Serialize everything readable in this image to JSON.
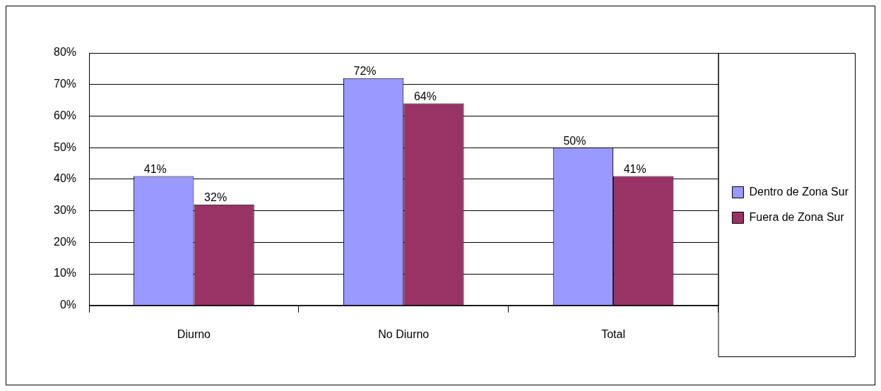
{
  "chart_data": {
    "type": "bar",
    "categories": [
      "Diurno",
      "No Diurno",
      "Total"
    ],
    "series": [
      {
        "name": "Dentro de Zona Sur",
        "color": "#9999ff",
        "values": [
          41,
          72,
          50
        ],
        "value_labels": [
          "41%",
          "72%",
          "50%"
        ]
      },
      {
        "name": "Fuera de Zona Sur",
        "color": "#993366",
        "values": [
          32,
          64,
          41
        ],
        "value_labels": [
          "32%",
          "64%",
          "41%"
        ]
      }
    ],
    "ylim": [
      0,
      80
    ],
    "yticks": [
      {
        "value": 0,
        "label": "0%"
      },
      {
        "value": 10,
        "label": "10%"
      },
      {
        "value": 20,
        "label": "20%"
      },
      {
        "value": 30,
        "label": "30%"
      },
      {
        "value": 40,
        "label": "40%"
      },
      {
        "value": 50,
        "label": "50%"
      },
      {
        "value": 60,
        "label": "60%"
      },
      {
        "value": 70,
        "label": "70%"
      },
      {
        "value": 80,
        "label": "80%"
      }
    ],
    "grid": "y",
    "legend": "right"
  }
}
